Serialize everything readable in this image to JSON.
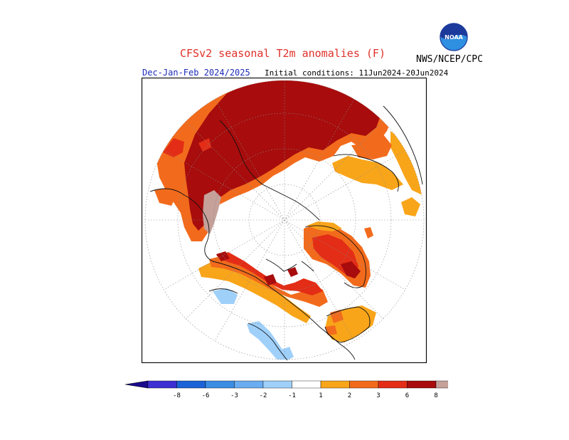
{
  "header": {
    "title": "CFSv2 seasonal T2m anomalies (F)",
    "agency": "NWS/NCEP/CPC",
    "season": "Dec-Jan-Feb 2024/2025",
    "initial_conditions": "Initial conditions: 11Jun2024-20Jun2024",
    "logo_text": "NOAA"
  },
  "colors": {
    "cool_extreme": "#1a0a8c",
    "minus8": "#3d2fd1",
    "minus6": "#1b63d6",
    "minus3": "#3b8de3",
    "minus2": "#6aacf0",
    "minus1": "#9fd0fa",
    "neutral": "#ffffff",
    "plus1": "#f9a51a",
    "plus2": "#f26b1c",
    "plus3": "#e32d16",
    "plus6": "#a80c0c",
    "plus8": "#c5a19a",
    "warm_extreme": "#8b5a4f"
  },
  "legend": {
    "labels": [
      "-8",
      "-6",
      "-3",
      "-2",
      "-1",
      "1",
      "2",
      "3",
      "6",
      "8"
    ]
  }
}
